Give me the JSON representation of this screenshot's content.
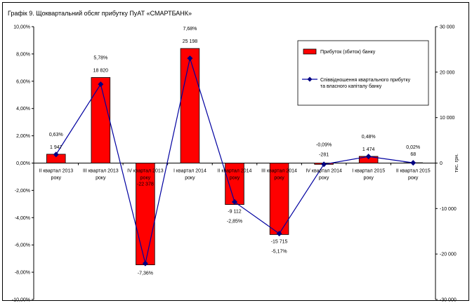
{
  "chart_data": {
    "type": "bar",
    "title": "Графік 9. Щоквартальний обсяг прибутку ПуАТ «СМАРТБАНК»",
    "categories": [
      [
        "ІІ квартал 2013",
        "року"
      ],
      [
        "ІІІ квартал 2013",
        "року"
      ],
      [
        "IV квартал 2013",
        "року"
      ],
      [
        "І квартал 2014",
        "року"
      ],
      [
        "ІІ квартал 2014",
        "року"
      ],
      [
        "ІІІ квартал 2014",
        "року"
      ],
      [
        "IV квартал 2014",
        "року"
      ],
      [
        "І квартал 2015",
        "року"
      ],
      [
        "ІІ квартал 2015",
        "року"
      ]
    ],
    "series": [
      {
        "name": "Прибуток (збиток)  банку",
        "type": "bar",
        "axis": "right",
        "color": "#ff0000",
        "values": [
          1947,
          18820,
          -22378,
          25198,
          -9112,
          -15715,
          -281,
          1474,
          68
        ],
        "labels": [
          "1 947",
          "18 820",
          "-22 378",
          "25 198",
          "-9 112",
          "-15 715",
          "-281",
          "1 474",
          "68"
        ]
      },
      {
        "name": [
          "Співвідношення квартального прибутку",
          "та власного капіталу банку"
        ],
        "type": "line",
        "axis": "left",
        "color": "#000080",
        "values": [
          0.63,
          5.78,
          -7.36,
          7.68,
          -2.85,
          -5.17,
          -0.09,
          0.48,
          0.02
        ],
        "labels": [
          "0,63%",
          "5,78%",
          "-7,36%",
          "7,68%",
          "-2,85%",
          "-5,17%",
          "-0,09%",
          "0,48%",
          "0,02%"
        ]
      }
    ],
    "left_axis": {
      "range": [
        -10,
        10
      ],
      "ticks": [
        "10,00%",
        "8,00%",
        "6,00%",
        "4,00%",
        "2,00%",
        "0,00%",
        "-2,00%",
        "-4,00%",
        "-6,00%",
        "-8,00%",
        "-10,00%"
      ]
    },
    "right_axis": {
      "range": [
        -30000,
        30000
      ],
      "label": "тис. грн.",
      "ticks": [
        "30 000",
        "20 000",
        "10 000",
        "0",
        "-10 000",
        "-20 000",
        "-30 000"
      ]
    },
    "grid": false,
    "legend_position": "top-right"
  }
}
